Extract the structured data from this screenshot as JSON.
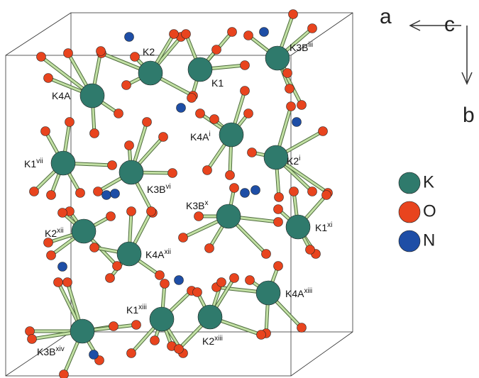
{
  "atoms": [
    {
      "base": "K2"
    },
    {
      "base": "K1"
    },
    {
      "base": "K3B",
      "sup": "iii"
    },
    {
      "base": "K4A"
    },
    {
      "base": "K4A",
      "sup": "i"
    },
    {
      "base": "K2",
      "sup": "i"
    },
    {
      "base": "K1",
      "sup": "vii"
    },
    {
      "base": "K3B",
      "sup": "vi"
    },
    {
      "base": "K3B",
      "sup": "x"
    },
    {
      "base": "K1",
      "sup": "xi"
    },
    {
      "base": "K2",
      "sup": "xii"
    },
    {
      "base": "K4A",
      "sup": "xii"
    },
    {
      "base": "K4A",
      "sup": "xiii"
    },
    {
      "base": "K1",
      "sup": "xiii"
    },
    {
      "base": "K2",
      "sup": "xiii"
    },
    {
      "base": "K3B",
      "sup": "xiv"
    }
  ],
  "axes": {
    "a": "a",
    "c": "c",
    "b": "b"
  },
  "legend": [
    {
      "label": "K",
      "color": "#2f7a6c"
    },
    {
      "label": "O",
      "color": "#e8441e"
    },
    {
      "label": "N",
      "color": "#1e4ea6"
    }
  ]
}
